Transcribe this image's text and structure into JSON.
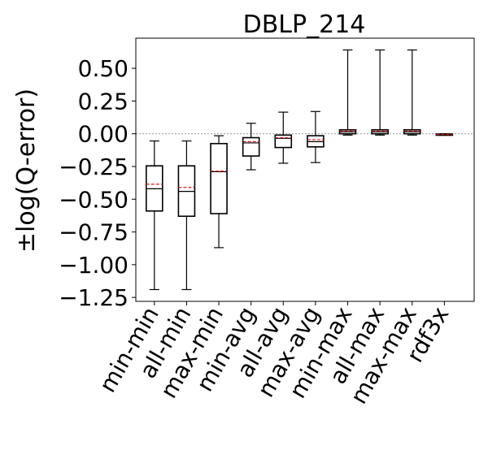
{
  "chart_data": {
    "type": "box",
    "title": "DBLP_214",
    "xlabel": "",
    "ylabel": "±log(Q-error)",
    "ylim": [
      -1.28,
      0.73
    ],
    "yticks": [
      -1.25,
      -1.0,
      -0.75,
      -0.5,
      -0.25,
      0.0,
      0.25,
      0.5
    ],
    "ytick_labels": [
      "−1.25",
      "−1.00",
      "−0.75",
      "−0.50",
      "−0.25",
      "0.00",
      "0.25",
      "0.50"
    ],
    "reference_line": 0.0,
    "categories": [
      "min-min",
      "all-min",
      "max-min",
      "min-avg",
      "all-avg",
      "max-avg",
      "min-max",
      "all-max",
      "max-max",
      "rdf3x"
    ],
    "boxes": [
      {
        "label": "min-min",
        "whisker_low": -1.19,
        "q1": -0.59,
        "median": -0.42,
        "q3": -0.245,
        "whisker_high": -0.055,
        "mean": -0.385
      },
      {
        "label": "all-min",
        "whisker_low": -1.19,
        "q1": -0.63,
        "median": -0.44,
        "q3": -0.245,
        "whisker_high": -0.055,
        "mean": -0.41
      },
      {
        "label": "max-min",
        "whisker_low": -0.87,
        "q1": -0.61,
        "median": -0.29,
        "q3": -0.075,
        "whisker_high": -0.015,
        "mean": -0.285
      },
      {
        "label": "min-avg",
        "whisker_low": -0.275,
        "q1": -0.17,
        "median": -0.07,
        "q3": -0.03,
        "whisker_high": 0.08,
        "mean": -0.06
      },
      {
        "label": "all-avg",
        "whisker_low": -0.225,
        "q1": -0.105,
        "median": -0.035,
        "q3": -0.01,
        "whisker_high": 0.165,
        "mean": -0.03
      },
      {
        "label": "max-avg",
        "whisker_low": -0.22,
        "q1": -0.1,
        "median": -0.06,
        "q3": -0.015,
        "whisker_high": 0.17,
        "mean": -0.045
      },
      {
        "label": "min-max",
        "whisker_low": -0.01,
        "q1": 0.0,
        "median": 0.015,
        "q3": 0.03,
        "whisker_high": 0.64,
        "mean": 0.02
      },
      {
        "label": "all-max",
        "whisker_low": -0.01,
        "q1": 0.0,
        "median": 0.015,
        "q3": 0.03,
        "whisker_high": 0.64,
        "mean": 0.02
      },
      {
        "label": "max-max",
        "whisker_low": -0.01,
        "q1": 0.0,
        "median": 0.015,
        "q3": 0.03,
        "whisker_high": 0.64,
        "mean": 0.02
      },
      {
        "label": "rdf3x",
        "whisker_low": -0.01,
        "q1": -0.008,
        "median": -0.005,
        "q3": -0.002,
        "whisker_high": 0.0,
        "mean": -0.005
      }
    ],
    "grid": false,
    "colors": {
      "box": "#000000",
      "median": "#000000",
      "mean": "#e41a1c",
      "reference": "#888888"
    }
  }
}
